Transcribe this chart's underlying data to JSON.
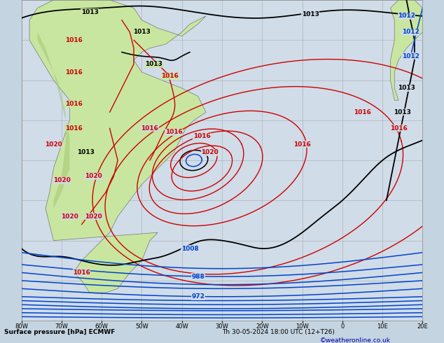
{
  "title": "Surface pressure [hPa] ECMWF",
  "datetime_str": "Th 30-05-2024 18:00 UTC (12+T26)",
  "credit": "©weatheronline.co.uk",
  "ocean_color": "#d0dce8",
  "land_color": "#c8e6a0",
  "land_dark_color": "#b0c890",
  "grid_color": "#aaaaaa",
  "lon_min": -80,
  "lon_max": 20,
  "lat_min": -70,
  "lat_max": 10,
  "figsize": [
    6.34,
    4.9
  ],
  "dpi": 100,
  "black": "#000000",
  "red": "#cc0000",
  "blue": "#0044cc",
  "label_fontsize": 6.5
}
